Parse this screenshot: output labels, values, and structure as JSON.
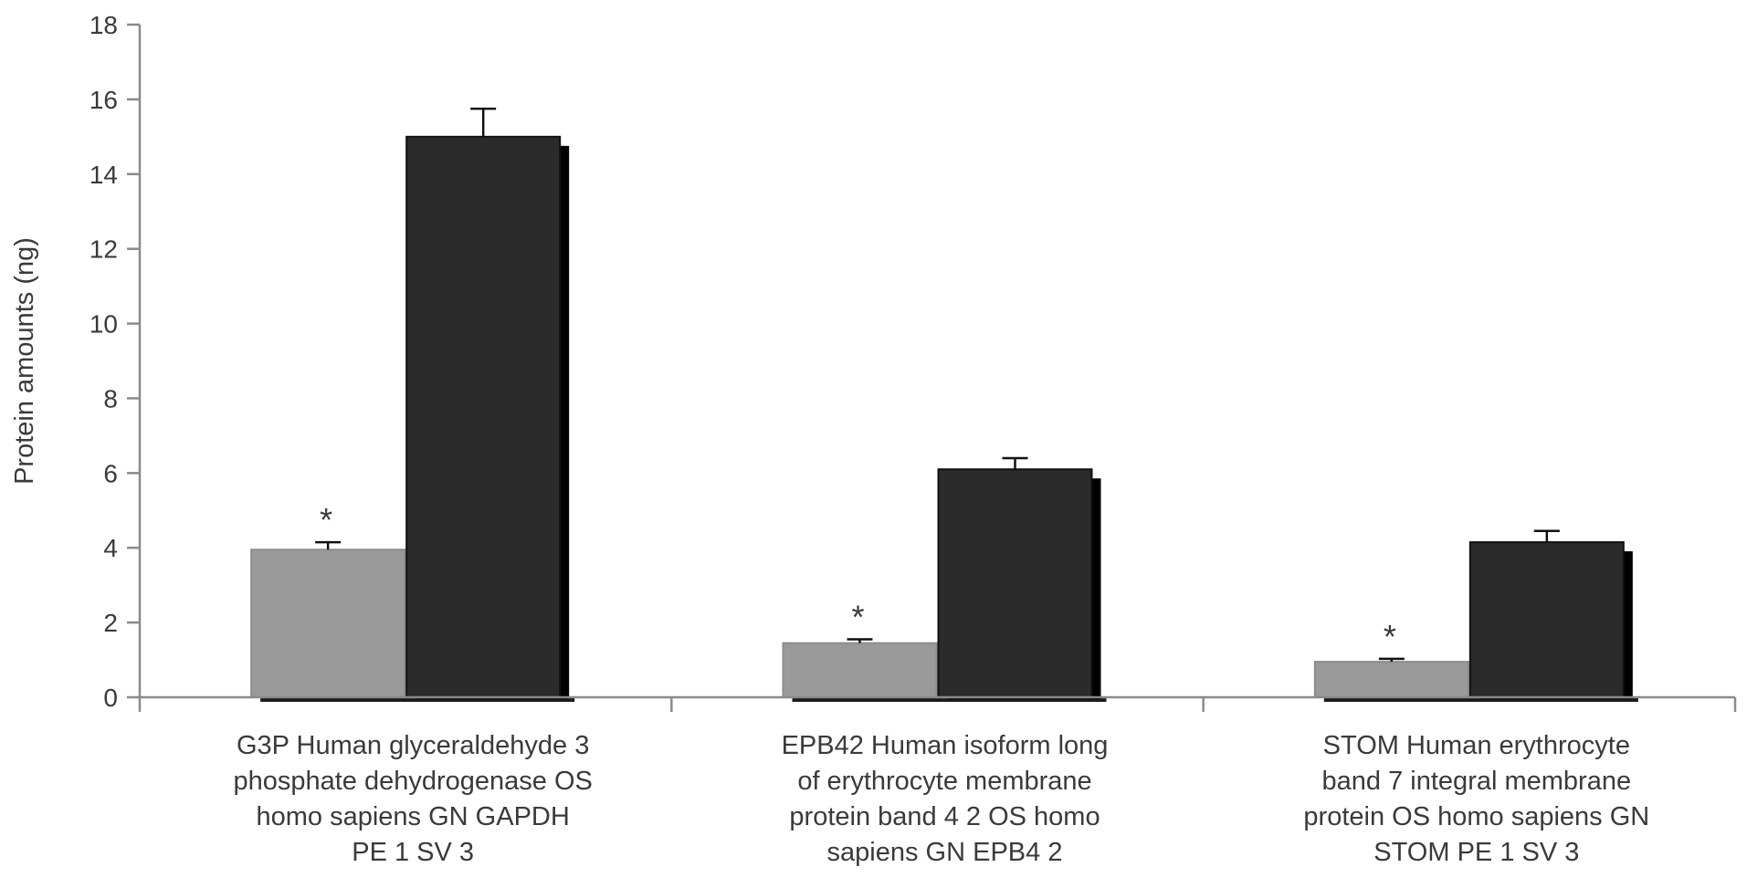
{
  "chart_data": {
    "type": "bar",
    "title": "",
    "xlabel": "",
    "ylabel": "Protein amounts (ng)",
    "ylim": [
      0,
      18
    ],
    "yticks": [
      "0",
      "2",
      "4",
      "6",
      "8",
      "10",
      "12",
      "14",
      "16",
      "18"
    ],
    "grid": false,
    "legend": "none",
    "categories": [
      [
        "G3P Human glyceraldehyde 3",
        "phosphate dehydrogenase OS",
        "homo sapiens GN GAPDH",
        "PE 1 SV 3"
      ],
      [
        "EPB42 Human isoform long",
        "of erythrocyte membrane",
        "protein band 4 2 OS homo",
        "sapiens GN EPB4 2"
      ],
      [
        "STOM Human erythrocyte",
        "band 7 integral membrane",
        "protein OS homo sapiens GN",
        "STOM PE 1 SV 3"
      ]
    ],
    "series": [
      {
        "color": "#9a9a9a",
        "values": [
          3.95,
          1.45,
          0.95
        ],
        "errors": [
          0.2,
          0.1,
          0.08
        ],
        "significance": [
          "*",
          "*",
          "*"
        ]
      },
      {
        "color": "#2b2b2b",
        "values": [
          15.0,
          6.1,
          4.15
        ],
        "errors": [
          0.75,
          0.3,
          0.3
        ],
        "significance": [
          "",
          "",
          ""
        ]
      }
    ]
  }
}
